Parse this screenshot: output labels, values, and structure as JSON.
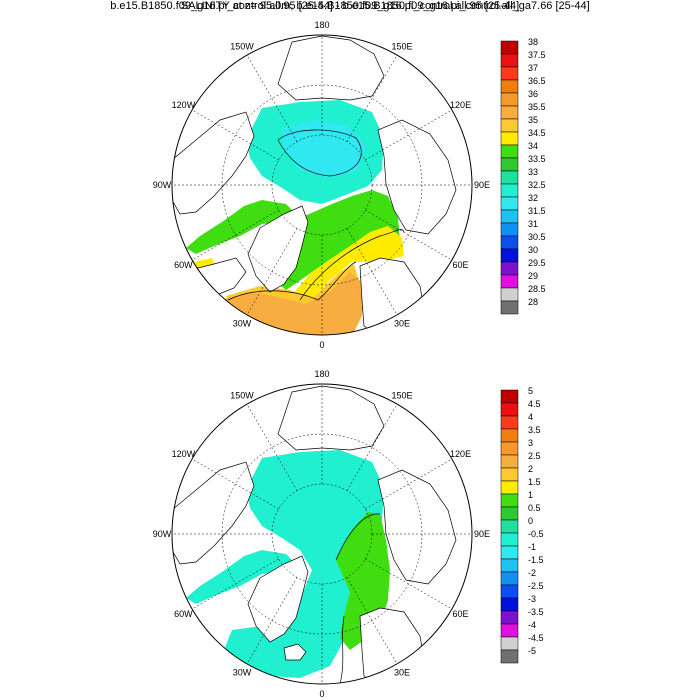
{
  "panels": [
    {
      "title": "SALINITY at z=  95.0m, b.e15.B1850.f09_g16.pi_control.all.95 [25-44]",
      "lon_labels": [
        "180",
        "150E",
        "120E",
        "90E",
        "60E",
        "30E",
        "0",
        "30W",
        "60W",
        "90W",
        "120W",
        "150W"
      ],
      "colorbar": {
        "labels": [
          "38",
          "37.5",
          "37",
          "36.5",
          "36",
          "35.5",
          "35",
          "34.5",
          "34",
          "33.5",
          "33",
          "32.5",
          "32",
          "31.5",
          "31",
          "30.5",
          "30",
          "29.5",
          "29",
          "28.5",
          "28"
        ]
      }
    },
    {
      "title": "b.e15.B1850.f09_g16.pi_control.all.95 [25-44] - b.e15.B1850.f09_g16.pi_control.all_ga7.66 [25-44]",
      "lon_labels": [
        "180",
        "150E",
        "120E",
        "90E",
        "60E",
        "30E",
        "0",
        "30W",
        "60W",
        "90W",
        "120W",
        "150W"
      ],
      "colorbar": {
        "labels": [
          "5",
          "4.5",
          "4",
          "3.5",
          "3",
          "2.5",
          "2",
          "1.5",
          "1",
          "0.5",
          "0",
          "-0.5",
          "-1",
          "-1.5",
          "-2",
          "-2.5",
          "-3",
          "-3.5",
          "-4",
          "-4.5",
          "-5"
        ]
      }
    }
  ],
  "colors": {
    "palette": [
      "#c00000",
      "#ee1010",
      "#ff3a1a",
      "#f07d10",
      "#f59a2a",
      "#f8ad40",
      "#fdc830",
      "#ffeb00",
      "#40dd10",
      "#30c830",
      "#20e0a0",
      "#20f0d0",
      "#30e8f0",
      "#20c0f0",
      "#1090f0",
      "#0a50f0",
      "#0010e0",
      "#8010d0",
      "#e010e0",
      "#d0d0d0",
      "#707070"
    ],
    "land": "#ffffff",
    "coast": "#000000"
  }
}
